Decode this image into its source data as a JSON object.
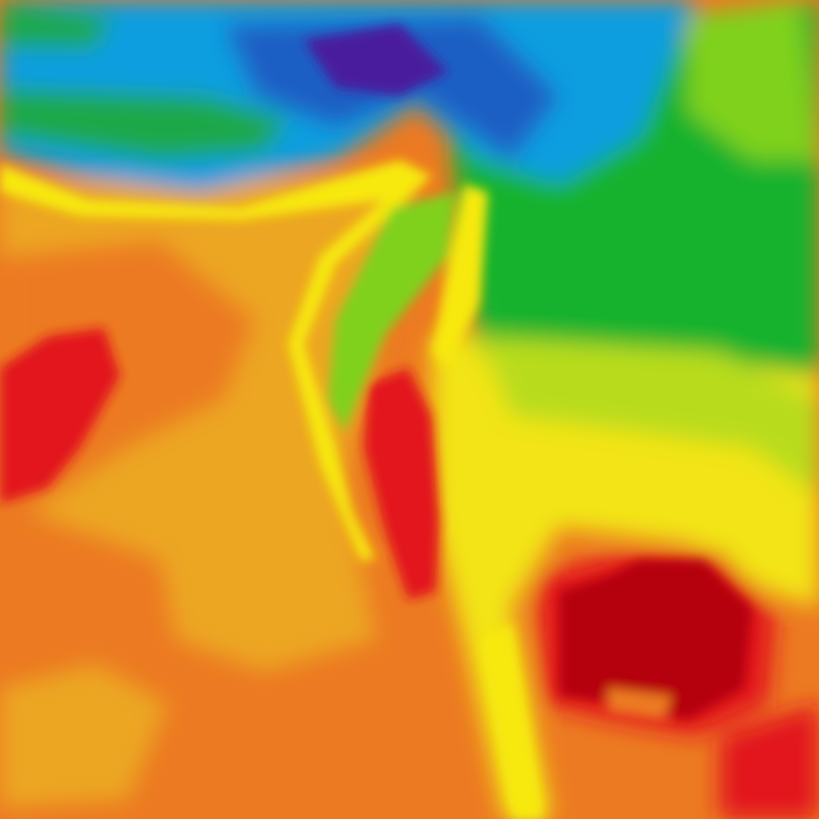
{
  "map": {
    "layer": "temperature-heatmap",
    "palette": {
      "deep_purple": "#4a1e9e",
      "dark_blue": "#1f5fc4",
      "blue": "#0a9ee0",
      "green": "#14b22e",
      "light_green": "#7fd11f",
      "yellow_green": "#c8e21a",
      "yellow": "#f7e90f",
      "light_orange": "#eca622",
      "orange": "#ec7a22",
      "red": "#e2141e",
      "dark_red": "#b5000f"
    }
  }
}
